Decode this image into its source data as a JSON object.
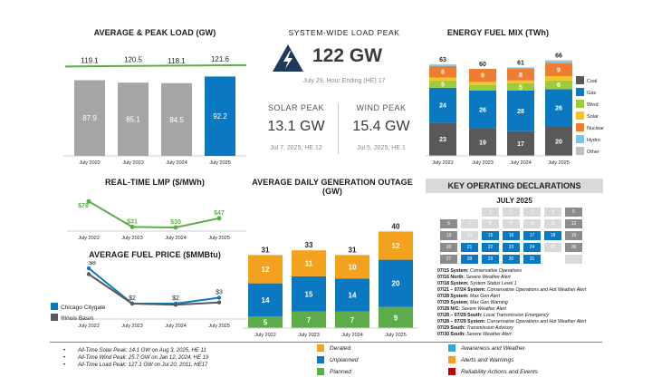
{
  "colors": {
    "gray": "#a6a6a6",
    "blue": "#0b78c2",
    "green": "#5cad4a",
    "orange": "#f4a21d",
    "light_blue": "#7ac3ea",
    "dark_gray": "#595959",
    "light_gray": "#d0d0d0",
    "yellow_green": "#9ccc3c",
    "nuclear": "#ec7d31",
    "other": "#bfbfbf",
    "navy": "#1f3b5c"
  },
  "icons": {
    "lightning": "lightning-bolt-icon"
  },
  "load": {
    "title": "AVERAGE & PEAK LOAD (GW)",
    "chart_data": {
      "type": "bar",
      "categories": [
        "July 2022",
        "July 2023",
        "July 2024",
        "July 2025"
      ],
      "series": [
        {
          "values": [
            87.9,
            85.1,
            84.5,
            92.2
          ]
        },
        {
          "values": [
            119.1,
            120.5,
            118.1,
            121.6
          ]
        }
      ],
      "value_labels": [
        "87.9",
        "85.1",
        "84.5",
        "92.2"
      ],
      "peak_labels": [
        "119.1",
        "120.5",
        "118.1",
        "121.6"
      ]
    }
  },
  "system_peak": {
    "title": "SYSTEM-WIDE LOAD PEAK",
    "value": "122 GW",
    "date": "July 29, Hour Ending (HE) 17"
  },
  "solar_peak": {
    "label": "SOLAR PEAK",
    "value": "13.1 GW",
    "date": "Jul 7, 2025, HE 12"
  },
  "wind_peak": {
    "label": "WIND PEAK",
    "value": "15.4 GW",
    "date": "Jul 5, 2025, HE 1"
  },
  "fuel_mix": {
    "title": "ENERGY FUEL MIX (TWh)",
    "chart_data": {
      "type": "bar",
      "stacked": true,
      "categories": [
        "July 2022",
        "July 2023",
        "July 2024",
        "July 2025"
      ],
      "totals": [
        "63",
        "60",
        "61",
        "66"
      ],
      "series": [
        {
          "name": "Coal",
          "values": [
            23,
            19,
            17,
            20
          ]
        },
        {
          "name": "Gas",
          "values": [
            24,
            26,
            28,
            26
          ]
        },
        {
          "name": "Wind",
          "values": [
            5,
            4,
            5,
            6
          ]
        },
        {
          "name": "Solar",
          "values": [
            2,
            2,
            2,
            3
          ]
        },
        {
          "name": "Nuclear",
          "values": [
            8,
            9,
            8,
            9
          ]
        },
        {
          "name": "Hydro",
          "values": [
            1,
            0,
            1,
            1
          ]
        },
        {
          "name": "Other",
          "values": [
            0,
            0,
            0,
            1
          ]
        }
      ],
      "segment_labels": [
        [
          "23",
          "24",
          "5",
          "",
          "8",
          "",
          ""
        ],
        [
          "19",
          "26",
          "",
          "",
          "9",
          "",
          ""
        ],
        [
          "17",
          "28",
          "5",
          "",
          "8",
          "",
          ""
        ],
        [
          "20",
          "26",
          "6",
          "",
          "9",
          "",
          ""
        ]
      ],
      "legend": [
        "Coal",
        "Gas",
        "Wind",
        "Solar",
        "Nuclear",
        "Hydro",
        "Other"
      ]
    }
  },
  "lmp": {
    "title": "REAL-TIME LMP ($/MWh)",
    "chart_data": {
      "type": "line",
      "categories": [
        "July 2022",
        "July 2023",
        "July 2024",
        "July 2025"
      ],
      "values": [
        78,
        31,
        30,
        47
      ],
      "labels": [
        "$78",
        "$31",
        "$30",
        "$47"
      ]
    }
  },
  "fuel_price": {
    "title": "AVERAGE FUEL PRICE ($MMBtu)",
    "chart_data": {
      "type": "line",
      "categories": [
        "July 2022",
        "July 2023",
        "July 2024",
        "July 2025"
      ],
      "series": [
        {
          "name": "Chicago Citygate",
          "values": [
            8,
            2,
            2,
            3
          ]
        },
        {
          "name": "Illinois Basin",
          "values": [
            7,
            2,
            1.8,
            2.2
          ]
        }
      ],
      "labels": [
        "$8",
        "$2",
        "$2",
        "$3"
      ]
    }
  },
  "outage": {
    "title": "AVERAGE DAILY GENERATION OUTAGE",
    "subtitle": "(GW)",
    "chart_data": {
      "type": "bar",
      "stacked": true,
      "categories": [
        "July 2022",
        "July 2023",
        "July 2024",
        "July 2025"
      ],
      "totals": [
        "31",
        "33",
        "31",
        "40"
      ],
      "series": [
        {
          "name": "Planned",
          "values": [
            5,
            7,
            7,
            9
          ]
        },
        {
          "name": "Unplanned",
          "values": [
            14,
            15,
            14,
            20
          ]
        },
        {
          "name": "Derated",
          "values": [
            12,
            11,
            10,
            12
          ]
        }
      ]
    }
  },
  "legend_outage": {
    "derated": "Derated",
    "unplanned": "Unplanned",
    "planned": "Planned"
  },
  "legend_decl": {
    "awareness": "Awareness and Weather",
    "alerts": "Alerts and Warnings",
    "reliability": "Reliability Actions and Events"
  },
  "declarations": {
    "title": "KEY OPERATING DECLARATIONS",
    "month": "JULY 2025",
    "days": [
      [
        "",
        "",
        "1",
        "2",
        "3",
        "4",
        "5"
      ],
      [
        "6",
        "7",
        "8",
        "9",
        "10",
        "11",
        "12"
      ],
      [
        "13",
        "14",
        "15",
        "16",
        "17",
        "18",
        "19"
      ],
      [
        "20",
        "21",
        "22",
        "23",
        "24",
        "25",
        "26"
      ],
      [
        "27",
        "28",
        "29",
        "30",
        "31",
        "",
        ""
      ]
    ],
    "day_styles": [
      [
        "e",
        "e",
        "l",
        "l",
        "l",
        "l",
        "g"
      ],
      [
        "g",
        "l",
        "l",
        "l",
        "l",
        "l",
        "g"
      ],
      [
        "g",
        "l",
        "b",
        "b",
        "b",
        "b",
        "g"
      ],
      [
        "g",
        "b",
        "b",
        "b",
        "b",
        "l",
        "g"
      ],
      [
        "g",
        "b",
        "b",
        "b",
        "b",
        "e",
        "l"
      ]
    ],
    "items": [
      {
        "date": "07/15",
        "region": "System:",
        "text": "Conservative Operations"
      },
      {
        "date": "07/16",
        "region": "North:",
        "text": "Severe Weather Alert"
      },
      {
        "date": "07/18",
        "region": "System:",
        "text": "System Status Level 1"
      },
      {
        "date": "07/21 – 07/24",
        "region": "System:",
        "text": "Conservative Operations and Hot Weather Alert"
      },
      {
        "date": "07/28",
        "region": "System:",
        "text": "Max Gen Alert"
      },
      {
        "date": "07/29",
        "region": "System:",
        "text": "Max Gen Warning"
      },
      {
        "date": "07/28",
        "region": "N/C:",
        "text": "Severe Weather Alert"
      },
      {
        "date": "07/28 – 07/29",
        "region": "South:",
        "text": "Local Transmission Emergency"
      },
      {
        "date": "07/28 – 07/29",
        "region": "System:",
        "text": "Conservative Operations and Hot Weather Alert"
      },
      {
        "date": "07/29",
        "region": "South:",
        "text": "Transmission Advisory"
      },
      {
        "date": "07/30",
        "region": "South:",
        "text": "Severe Weather Alert"
      }
    ]
  },
  "notes": [
    "All-Time Solar Peak: 14.1 GW on Aug 3, 2025, HE 11",
    "All-Time Wind Peak: 25.7 GW on Jan 12, 2024, HE 19",
    "All-Time Load Peak: 127.1 GW on Jul 20, 2011, HE17"
  ]
}
